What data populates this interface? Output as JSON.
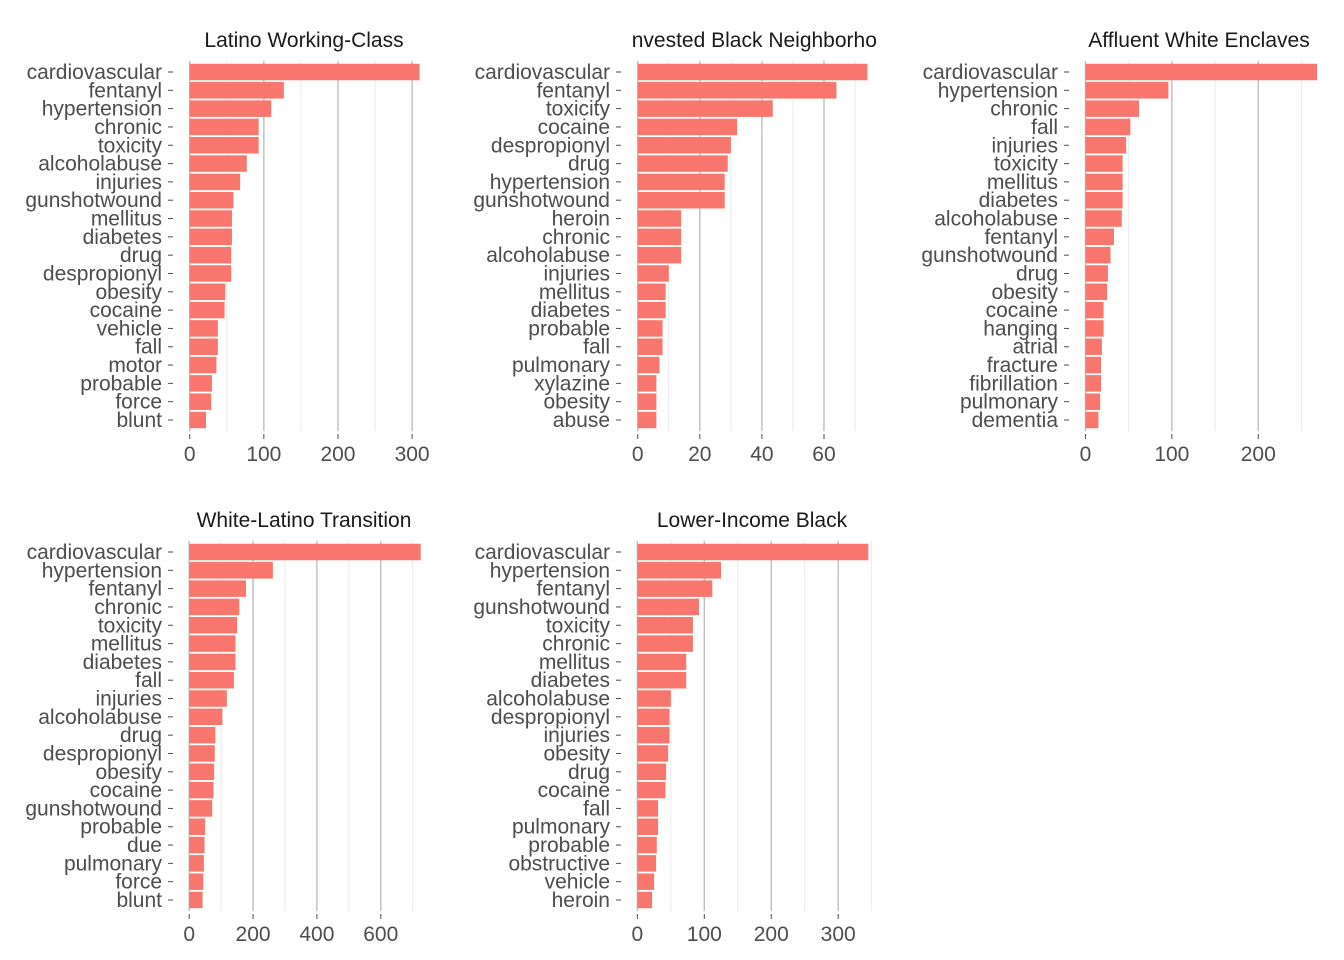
{
  "colors": {
    "bar": "#F8766D",
    "major_grid": "#BEBEBE",
    "minor_grid": "#EBEBEB",
    "tick": "#4D4D4D",
    "text": "#4D4D4D",
    "title": "#1A1A1A"
  },
  "chart_data": [
    {
      "type": "bar",
      "orientation": "horizontal",
      "title": "Latino Working-Class",
      "categories": [
        "cardiovascular",
        "fentanyl",
        "hypertension",
        "chronic",
        "toxicity",
        "alcoholabuse",
        "injuries",
        "gunshotwound",
        "mellitus",
        "diabetes",
        "drug",
        "despropionyl",
        "obesity",
        "cocaine",
        "vehicle",
        "fall",
        "motor",
        "probable",
        "force",
        "blunt"
      ],
      "values": [
        310,
        127,
        110,
        93,
        93,
        77,
        68,
        59,
        57,
        57,
        56,
        56,
        48,
        47,
        38,
        38,
        36,
        30,
        29,
        22
      ],
      "xlim": [
        -5,
        312
      ],
      "xticks": [
        0,
        100,
        200,
        300
      ],
      "minor_ticks": [
        50,
        150,
        250
      ]
    },
    {
      "type": "bar",
      "orientation": "horizontal",
      "title": "invested Black Neighborho",
      "categories": [
        "cardiovascular",
        "fentanyl",
        "toxicity",
        "cocaine",
        "despropionyl",
        "drug",
        "hypertension",
        "gunshotwound",
        "heroin",
        "chronic",
        "alcoholabuse",
        "injuries",
        "mellitus",
        "diabetes",
        "probable",
        "fall",
        "pulmonary",
        "xylazine",
        "obesity",
        "abuse"
      ],
      "values": [
        74,
        64,
        43.5,
        32,
        30,
        29,
        28,
        28,
        14,
        14,
        14,
        10,
        9,
        9,
        8,
        8,
        7,
        6,
        6,
        6
      ],
      "xlim": [
        -1.2,
        74.5
      ],
      "xticks": [
        0,
        20,
        40,
        60
      ],
      "minor_ticks": [
        10,
        30,
        50,
        70
      ]
    },
    {
      "type": "bar",
      "orientation": "horizontal",
      "title": "Affluent White Enclaves",
      "categories": [
        "cardiovascular",
        "hypertension",
        "chronic",
        "fall",
        "injuries",
        "toxicity",
        "mellitus",
        "diabetes",
        "alcoholabuse",
        "fentanyl",
        "gunshotwound",
        "drug",
        "obesity",
        "cocaine",
        "hanging",
        "atrial",
        "fracture",
        "fibrillation",
        "pulmonary",
        "dementia"
      ],
      "values": [
        268,
        96,
        62,
        52,
        47,
        43,
        43,
        43,
        42,
        33,
        29,
        26,
        25,
        21,
        21,
        19,
        18,
        18,
        17,
        15
      ],
      "xlim": [
        -4,
        268
      ],
      "xticks": [
        0,
        100,
        200
      ],
      "minor_ticks": [
        50,
        150,
        250
      ]
    },
    {
      "type": "bar",
      "orientation": "horizontal",
      "title": "White-Latino Transition",
      "categories": [
        "cardiovascular",
        "hypertension",
        "fentanyl",
        "chronic",
        "toxicity",
        "mellitus",
        "diabetes",
        "fall",
        "injuries",
        "alcoholabuse",
        "drug",
        "despropionyl",
        "obesity",
        "cocaine",
        "gunshotwound",
        "probable",
        "due",
        "pulmonary",
        "force",
        "blunt"
      ],
      "values": [
        725,
        262,
        178,
        157,
        150,
        145,
        145,
        140,
        118,
        104,
        82,
        80,
        78,
        76,
        72,
        50,
        48,
        46,
        44,
        42
      ],
      "xlim": [
        -10,
        726
      ],
      "xticks": [
        0,
        200,
        400,
        600
      ],
      "minor_ticks": [
        100,
        300,
        500,
        700
      ]
    },
    {
      "type": "bar",
      "orientation": "horizontal",
      "title": "Lower-Income Black",
      "categories": [
        "cardiovascular",
        "hypertension",
        "fentanyl",
        "gunshotwound",
        "toxicity",
        "chronic",
        "mellitus",
        "diabetes",
        "alcoholabuse",
        "despropionyl",
        "injuries",
        "obesity",
        "drug",
        "cocaine",
        "fall",
        "pulmonary",
        "probable",
        "obstructive",
        "vehicle",
        "heroin"
      ],
      "values": [
        345,
        125,
        112,
        92,
        83,
        83,
        73,
        73,
        50,
        48,
        48,
        46,
        43,
        42,
        31,
        31,
        29,
        28,
        25,
        22
      ],
      "xlim": [
        -5,
        346
      ],
      "xticks": [
        0,
        100,
        200,
        300
      ],
      "minor_ticks": [
        50,
        150,
        250,
        350
      ]
    }
  ]
}
